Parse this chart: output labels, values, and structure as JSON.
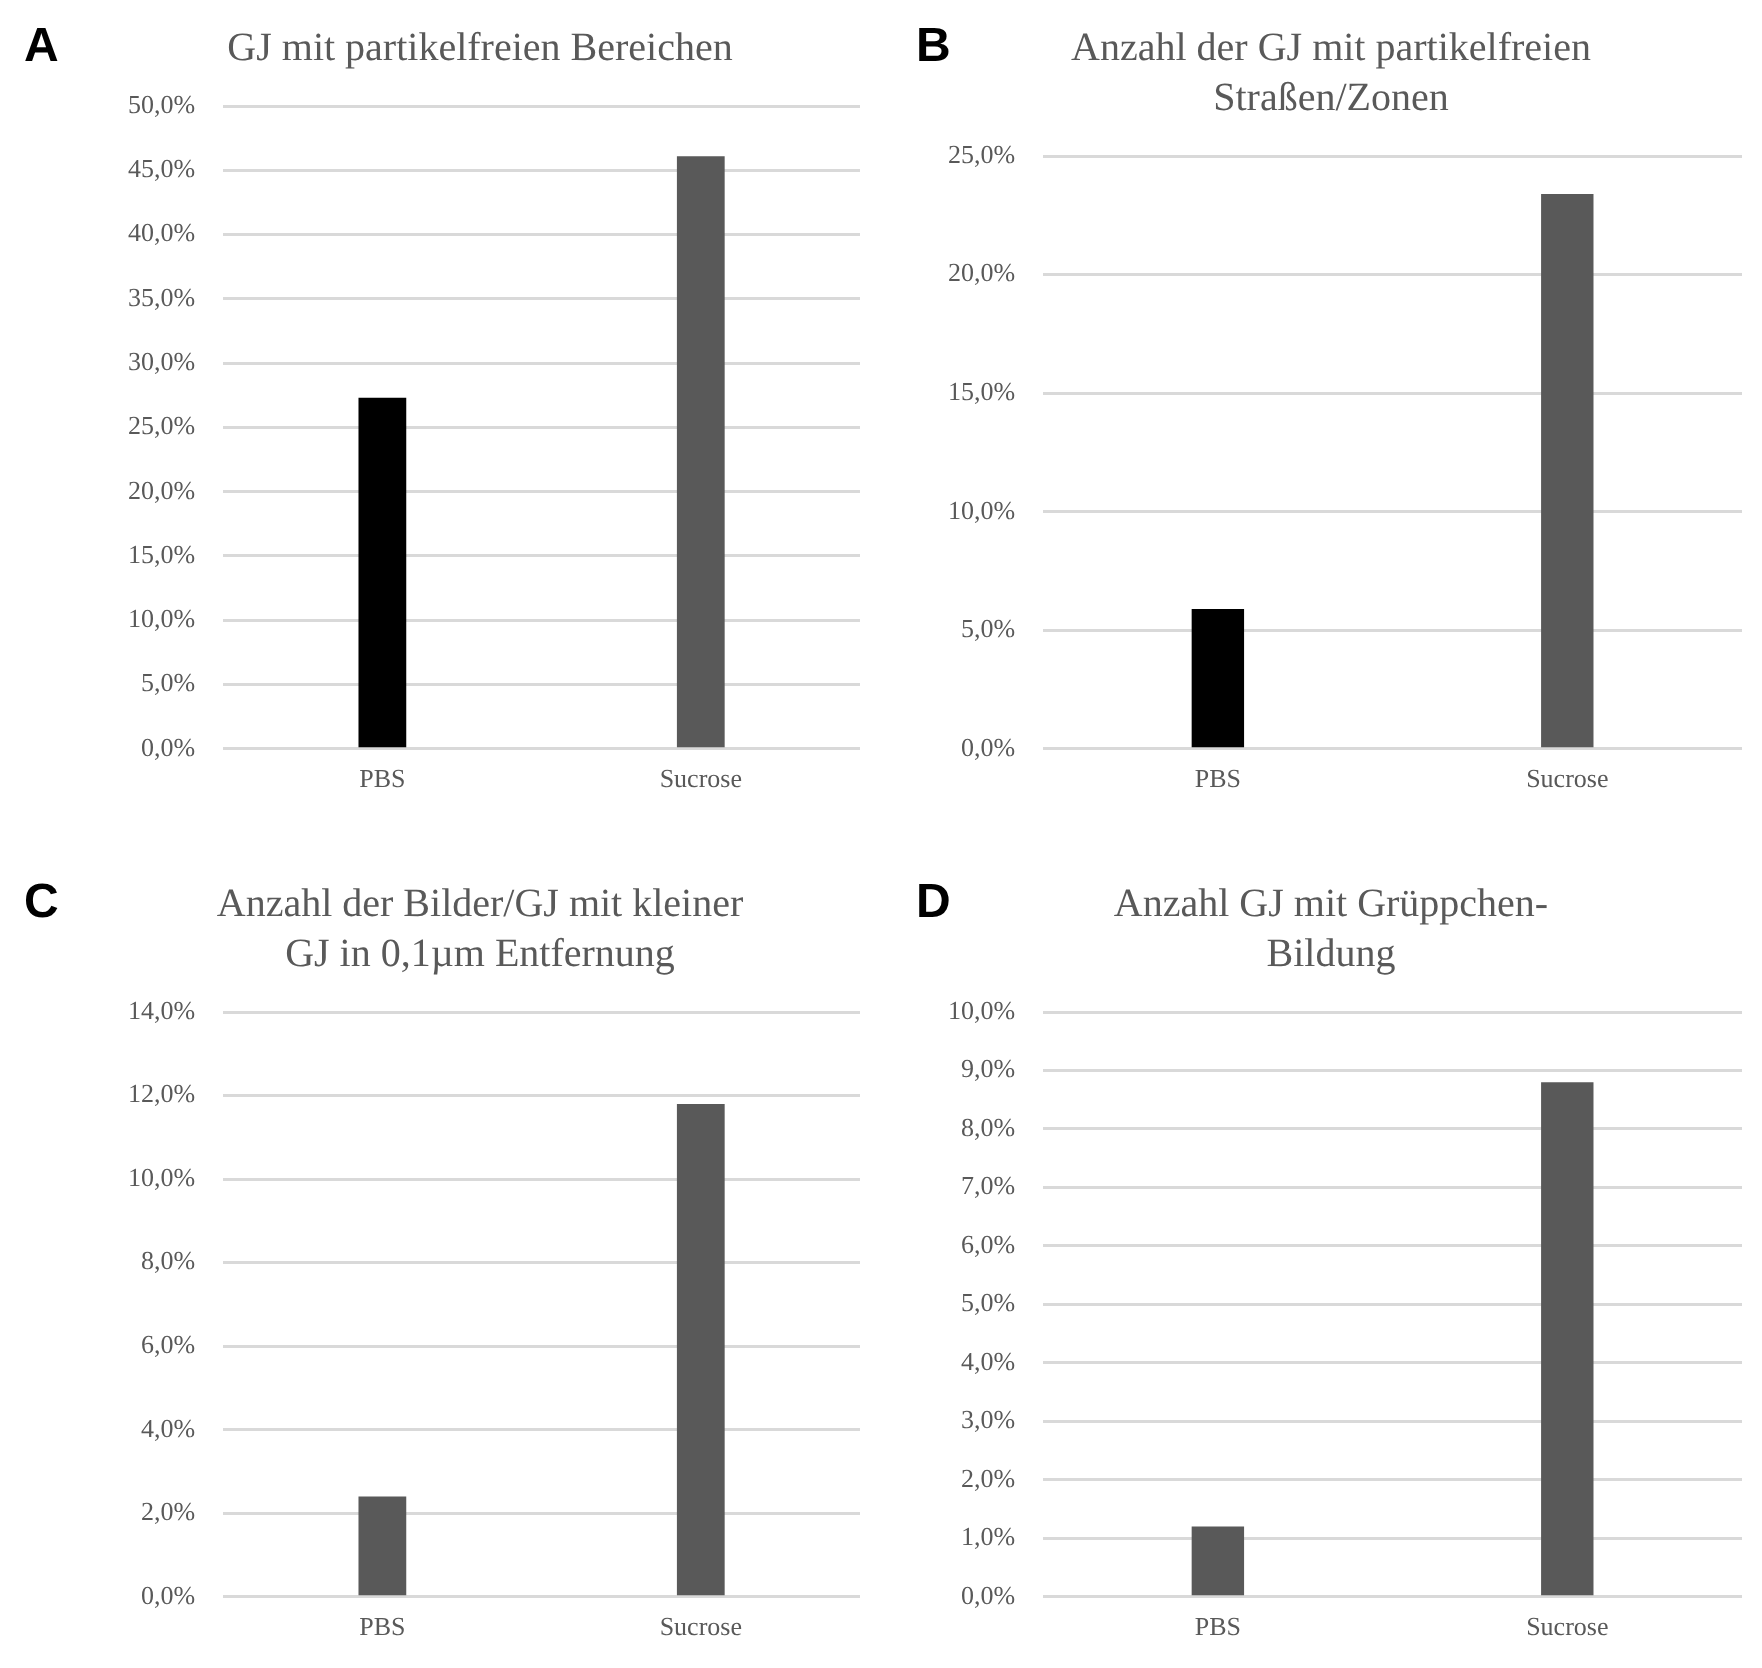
{
  "chart_data": [
    {
      "type": "bar",
      "title": "GJ mit partikelfreien Bereichen",
      "annotations": [
        "A"
      ],
      "categories": [
        "PBS",
        "Sucrose"
      ],
      "values": [
        27.3,
        46.1
      ],
      "colors": [
        "#000000",
        "#595959"
      ],
      "ylim": [
        0,
        50
      ],
      "yticks": [
        {
          "value": 0,
          "label": "0,0%"
        },
        {
          "value": 5,
          "label": "5,0%"
        },
        {
          "value": 10,
          "label": "10,0%"
        },
        {
          "value": 15,
          "label": "15,0%"
        },
        {
          "value": 20,
          "label": "20,0%"
        },
        {
          "value": 25,
          "label": "25,0%"
        },
        {
          "value": 30,
          "label": "30,0%"
        },
        {
          "value": 35,
          "label": "35,0%"
        },
        {
          "value": 40,
          "label": "40,0%"
        },
        {
          "value": 45,
          "label": "45,0%"
        },
        {
          "value": 50,
          "label": "50,0%"
        }
      ],
      "grid": "y"
    },
    {
      "type": "bar",
      "title": "Anzahl der GJ mit partikelfreien\nStraßen/Zonen",
      "annotations": [
        "B"
      ],
      "categories": [
        "PBS",
        "Sucrose"
      ],
      "values": [
        5.9,
        23.4
      ],
      "colors": [
        "#000000",
        "#595959"
      ],
      "ylim": [
        0,
        25
      ],
      "yticks": [
        {
          "value": 0,
          "label": "0,0%"
        },
        {
          "value": 5,
          "label": "5,0%"
        },
        {
          "value": 10,
          "label": "10,0%"
        },
        {
          "value": 15,
          "label": "15,0%"
        },
        {
          "value": 20,
          "label": "20,0%"
        },
        {
          "value": 25,
          "label": "25,0%"
        }
      ],
      "grid": "y"
    },
    {
      "type": "bar",
      "title": "Anzahl der Bilder/GJ mit kleiner\nGJ in 0,1µm Entfernung",
      "annotations": [
        "C"
      ],
      "categories": [
        "PBS",
        "Sucrose"
      ],
      "values": [
        2.4,
        11.8
      ],
      "colors": [
        "#595959",
        "#595959"
      ],
      "ylim": [
        0,
        14
      ],
      "yticks": [
        {
          "value": 0,
          "label": "0,0%"
        },
        {
          "value": 2,
          "label": "2,0%"
        },
        {
          "value": 4,
          "label": "4,0%"
        },
        {
          "value": 6,
          "label": "6,0%"
        },
        {
          "value": 8,
          "label": "8,0%"
        },
        {
          "value": 10,
          "label": "10,0%"
        },
        {
          "value": 12,
          "label": "12,0%"
        },
        {
          "value": 14,
          "label": "14,0%"
        }
      ],
      "grid": "y"
    },
    {
      "type": "bar",
      "title": "Anzahl GJ mit Grüppchen-\nBildung",
      "annotations": [
        "D"
      ],
      "categories": [
        "PBS",
        "Sucrose"
      ],
      "values": [
        1.2,
        8.8
      ],
      "colors": [
        "#595959",
        "#595959"
      ],
      "ylim": [
        0,
        10
      ],
      "yticks": [
        {
          "value": 0,
          "label": "0,0%"
        },
        {
          "value": 1,
          "label": "1,0%"
        },
        {
          "value": 2,
          "label": "2,0%"
        },
        {
          "value": 3,
          "label": "3,0%"
        },
        {
          "value": 4,
          "label": "4,0%"
        },
        {
          "value": 5,
          "label": "5,0%"
        },
        {
          "value": 6,
          "label": "6,0%"
        },
        {
          "value": 7,
          "label": "7,0%"
        },
        {
          "value": 8,
          "label": "8,0%"
        },
        {
          "value": 9,
          "label": "9,0%"
        },
        {
          "value": 10,
          "label": "10,0%"
        }
      ],
      "grid": "y"
    }
  ]
}
